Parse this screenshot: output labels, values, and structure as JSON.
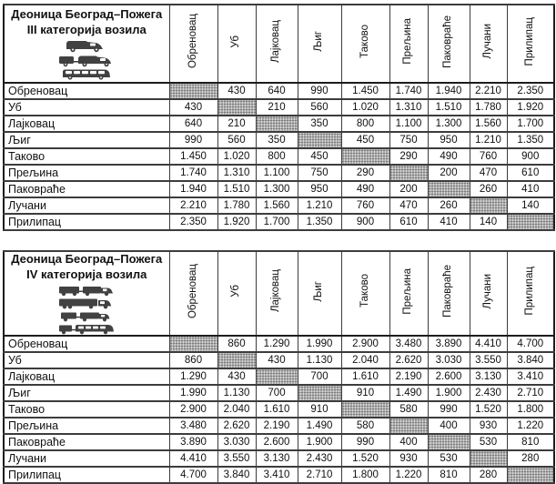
{
  "tables": [
    {
      "title_line1": "Деоница Београд–Пожега",
      "title_line2": "III категорија возила",
      "vehicle_icons": [
        "van-icon",
        "van-with-trailer-icon",
        "minibus-icon"
      ],
      "columns": [
        "Обреновац",
        "Уб",
        "Лајковац",
        "Љиг",
        "Таково",
        "Прељина",
        "Паковраће",
        "Лучани",
        "Прилипац"
      ],
      "rows": [
        {
          "label": "Обреновац",
          "values": [
            null,
            "430",
            "640",
            "990",
            "1.450",
            "1.740",
            "1.940",
            "2.210",
            "2.350"
          ]
        },
        {
          "label": "Уб",
          "values": [
            "430",
            null,
            "210",
            "560",
            "1.020",
            "1.310",
            "1.510",
            "1.780",
            "1.920"
          ]
        },
        {
          "label": "Лајковац",
          "values": [
            "640",
            "210",
            null,
            "350",
            "800",
            "1.100",
            "1.300",
            "1.560",
            "1.700"
          ]
        },
        {
          "label": "Љиг",
          "values": [
            "990",
            "560",
            "350",
            null,
            "450",
            "750",
            "950",
            "1.210",
            "1.350"
          ]
        },
        {
          "label": "Таково",
          "values": [
            "1.450",
            "1.020",
            "800",
            "450",
            null,
            "290",
            "490",
            "760",
            "900"
          ]
        },
        {
          "label": "Прељина",
          "values": [
            "1.740",
            "1.310",
            "1.100",
            "750",
            "290",
            null,
            "200",
            "470",
            "610"
          ]
        },
        {
          "label": "Паковраће",
          "values": [
            "1.940",
            "1.510",
            "1.300",
            "950",
            "490",
            "200",
            null,
            "260",
            "410"
          ]
        },
        {
          "label": "Лучани",
          "values": [
            "2.210",
            "1.780",
            "1.560",
            "1.210",
            "760",
            "470",
            "260",
            null,
            "140"
          ]
        },
        {
          "label": "Прилипац",
          "values": [
            "2.350",
            "1.920",
            "1.700",
            "1.350",
            "900",
            "610",
            "410",
            "140",
            null
          ]
        }
      ]
    },
    {
      "title_line1": "Деоница Београд–Пожега",
      "title_line2": "IV категорија возила",
      "vehicle_icons": [
        "truck-with-trailer-icon",
        "semi-trailer-truck-icon",
        "truck-with-small-trailer-icon",
        "bus-with-trailer-icon"
      ],
      "columns": [
        "Обреновац",
        "Уб",
        "Лајковац",
        "Љиг",
        "Таково",
        "Прељина",
        "Паковраће",
        "Лучани",
        "Прилипац"
      ],
      "rows": [
        {
          "label": "Обреновац",
          "values": [
            null,
            "860",
            "1.290",
            "1.990",
            "2.900",
            "3.480",
            "3.890",
            "4.410",
            "4.700"
          ]
        },
        {
          "label": "Уб",
          "values": [
            "860",
            null,
            "430",
            "1.130",
            "2.040",
            "2.620",
            "3.030",
            "3.550",
            "3.840"
          ]
        },
        {
          "label": "Лајковац",
          "values": [
            "1.290",
            "430",
            null,
            "700",
            "1.610",
            "2.190",
            "2.600",
            "3.130",
            "3.410"
          ]
        },
        {
          "label": "Љиг",
          "values": [
            "1.990",
            "1.130",
            "700",
            null,
            "910",
            "1.490",
            "1.900",
            "2.430",
            "2.710"
          ]
        },
        {
          "label": "Таково",
          "values": [
            "2.900",
            "2.040",
            "1.610",
            "910",
            null,
            "580",
            "990",
            "1.520",
            "1.800"
          ]
        },
        {
          "label": "Прељина",
          "values": [
            "3.480",
            "2.620",
            "2.190",
            "1.490",
            "580",
            null,
            "400",
            "930",
            "1.220"
          ]
        },
        {
          "label": "Паковраће",
          "values": [
            "3.890",
            "3.030",
            "2.600",
            "1.900",
            "990",
            "400",
            null,
            "530",
            "810"
          ]
        },
        {
          "label": "Лучани",
          "values": [
            "4.410",
            "3.550",
            "3.130",
            "2.430",
            "1.520",
            "930",
            "530",
            null,
            "280"
          ]
        },
        {
          "label": "Прилипац",
          "values": [
            "4.700",
            "3.840",
            "3.410",
            "2.710",
            "1.800",
            "1.220",
            "810",
            "280",
            null
          ]
        }
      ]
    }
  ]
}
